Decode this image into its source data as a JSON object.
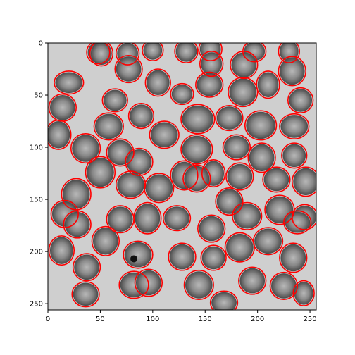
{
  "figure": {
    "x_ticks": [
      "0",
      "50",
      "100",
      "150",
      "200",
      "250"
    ],
    "y_ticks": [
      "0",
      "50",
      "100",
      "150",
      "200",
      "250"
    ],
    "x_range": [
      0,
      256
    ],
    "y_range": [
      0,
      256
    ],
    "y_inverted": true,
    "colors": {
      "background": "#cfcfcf",
      "cell_fill": "#7d7d7d",
      "cell_center": "#b3b3b3",
      "contour": "#ff0000"
    },
    "cells": [
      [
        48,
        9,
        10,
        10
      ],
      [
        76,
        10,
        10,
        10
      ],
      [
        100,
        7,
        9,
        9
      ],
      [
        132,
        8,
        10,
        10
      ],
      [
        155,
        6,
        10,
        10
      ],
      [
        197,
        8,
        10,
        9
      ],
      [
        230,
        8,
        9,
        10
      ],
      [
        20,
        38,
        13,
        10
      ],
      [
        51,
        10,
        10,
        11
      ],
      [
        77,
        25,
        12,
        12
      ],
      [
        105,
        38,
        11,
        12
      ],
      [
        128,
        49,
        10,
        9
      ],
      [
        156,
        20,
        10,
        11
      ],
      [
        154,
        40,
        12,
        11
      ],
      [
        187,
        21,
        12,
        12
      ],
      [
        186,
        47,
        13,
        13
      ],
      [
        210,
        40,
        10,
        12
      ],
      [
        233,
        27,
        12,
        13
      ],
      [
        241,
        55,
        11,
        11
      ],
      [
        14,
        62,
        12,
        12
      ],
      [
        64,
        55,
        11,
        10
      ],
      [
        89,
        70,
        11,
        11
      ],
      [
        58,
        80,
        13,
        12
      ],
      [
        111,
        88,
        13,
        12
      ],
      [
        143,
        73,
        15,
        13
      ],
      [
        173,
        72,
        12,
        11
      ],
      [
        203,
        79,
        14,
        13
      ],
      [
        235,
        80,
        13,
        11
      ],
      [
        10,
        88,
        11,
        13
      ],
      [
        36,
        101,
        13,
        13
      ],
      [
        69,
        105,
        12,
        12
      ],
      [
        87,
        114,
        12,
        12
      ],
      [
        142,
        102,
        14,
        13
      ],
      [
        180,
        100,
        12,
        11
      ],
      [
        204,
        110,
        12,
        13
      ],
      [
        235,
        108,
        11,
        11
      ],
      [
        50,
        124,
        13,
        14
      ],
      [
        79,
        136,
        13,
        12
      ],
      [
        106,
        139,
        13,
        13
      ],
      [
        130,
        127,
        12,
        13
      ],
      [
        158,
        125,
        10,
        12
      ],
      [
        183,
        128,
        12,
        12
      ],
      [
        218,
        131,
        12,
        11
      ],
      [
        246,
        133,
        12,
        13
      ],
      [
        27,
        145,
        13,
        14
      ],
      [
        142,
        130,
        12,
        12
      ],
      [
        173,
        152,
        12,
        12
      ],
      [
        221,
        160,
        13,
        13
      ],
      [
        245,
        167,
        11,
        11
      ],
      [
        16,
        164,
        12,
        12
      ],
      [
        69,
        169,
        12,
        12
      ],
      [
        95,
        168,
        12,
        14
      ],
      [
        123,
        168,
        12,
        11
      ],
      [
        156,
        178,
        12,
        12
      ],
      [
        190,
        166,
        13,
        12
      ],
      [
        238,
        172,
        12,
        10
      ],
      [
        28,
        174,
        12,
        12
      ],
      [
        13,
        199,
        11,
        13
      ],
      [
        55,
        190,
        12,
        13
      ],
      [
        86,
        203,
        13,
        12
      ],
      [
        210,
        190,
        13,
        12
      ],
      [
        234,
        206,
        12,
        13
      ],
      [
        128,
        205,
        12,
        12
      ],
      [
        158,
        206,
        11,
        11
      ],
      [
        183,
        196,
        13,
        13
      ],
      [
        37,
        215,
        12,
        12
      ],
      [
        82,
        232,
        13,
        12
      ],
      [
        96,
        230,
        12,
        12
      ],
      [
        144,
        232,
        13,
        13
      ],
      [
        195,
        228,
        12,
        12
      ],
      [
        225,
        233,
        12,
        12
      ],
      [
        36,
        241,
        12,
        11
      ],
      [
        168,
        249,
        12,
        10
      ],
      [
        244,
        240,
        9,
        11
      ]
    ],
    "dark_spot": [
      82,
      207
    ]
  }
}
